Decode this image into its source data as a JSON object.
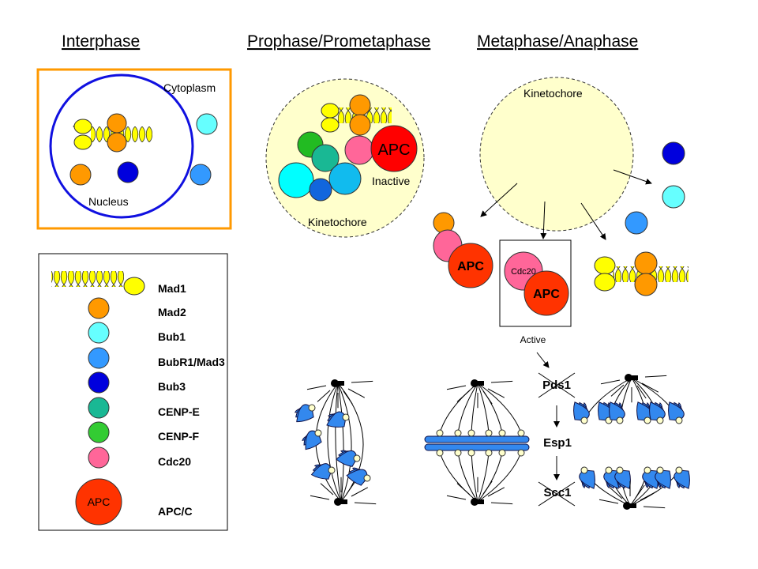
{
  "titles": {
    "interphase": "Interphase",
    "prophase": "Prophase/Prometaphase",
    "metaphase": "Metaphase/Anaphase"
  },
  "interphase": {
    "cytoplasm": "Cytoplasm",
    "nucleus": "Nucleus"
  },
  "prophase": {
    "kinetochore": "Kinetochore",
    "apc": "APC",
    "inactive": "Inactive"
  },
  "metaphase": {
    "kinetochore": "Kinetochore",
    "apc1": "APC",
    "cdc20": "Cdc20",
    "apc2": "APC",
    "active": "Active"
  },
  "pathway": {
    "pds1": "Pds1",
    "esp1": "Esp1",
    "scc1": "Scc1"
  },
  "legend": {
    "items": [
      {
        "label": "Mad1",
        "color": "#ffff00"
      },
      {
        "label": "Mad2",
        "color": "#ff9900"
      },
      {
        "label": "Bub1",
        "color": "#66ffff"
      },
      {
        "label": "BubR1/Mad3",
        "color": "#3399ff"
      },
      {
        "label": "Bub3",
        "color": "#0000dd"
      },
      {
        "label": "CENP-E",
        "color": "#19b894"
      },
      {
        "label": "CENP-F",
        "color": "#33cc33"
      },
      {
        "label": "Cdc20",
        "color": "#ff6699"
      },
      {
        "label": "APC/C",
        "color": "#ff3300"
      }
    ],
    "apc_icon": "APC"
  },
  "colors": {
    "interphase_border": "#ff9900",
    "nucleus": "#1010e0",
    "kinetochore_fill": "#ffffcc",
    "chromosome": "#3388ee",
    "kinetochore_dot": "#ffffcc"
  }
}
